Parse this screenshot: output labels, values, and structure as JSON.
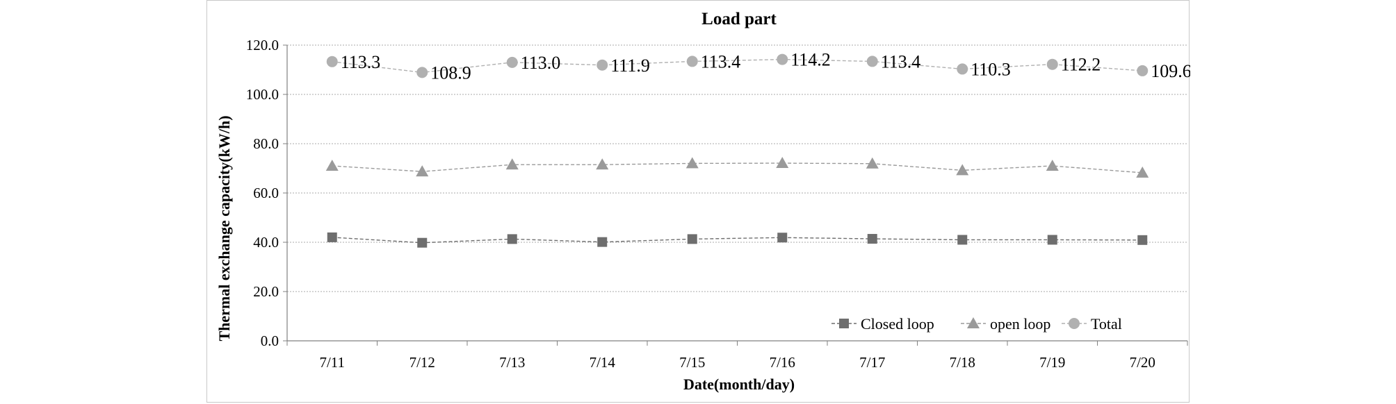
{
  "chart_data": {
    "type": "line",
    "title": "Load part",
    "xlabel": "Date(month/day)",
    "ylabel": "Thermal exchange capacity(kW/h)",
    "categories": [
      "7/11",
      "7/12",
      "7/13",
      "7/14",
      "7/15",
      "7/16",
      "7/17",
      "7/18",
      "7/19",
      "7/20"
    ],
    "ylim": [
      0,
      120
    ],
    "yticks": [
      "0.0",
      "20.0",
      "40.0",
      "60.0",
      "80.0",
      "100.0",
      "120.0"
    ],
    "grid": true,
    "legend_position": "bottom-right",
    "series": [
      {
        "name": "Closed loop",
        "marker": "square",
        "color": "#6e6e6e",
        "values": [
          42.0,
          39.8,
          41.3,
          40.1,
          41.3,
          41.9,
          41.4,
          41.0,
          41.0,
          40.9
        ]
      },
      {
        "name": "open loop",
        "marker": "triangle",
        "color": "#9a9a9a",
        "values": [
          71.0,
          68.7,
          71.5,
          71.5,
          72.0,
          72.1,
          71.9,
          69.2,
          71.0,
          68.2
        ]
      },
      {
        "name": "Total",
        "marker": "circle",
        "color": "#b0b0b0",
        "values": [
          113.3,
          108.9,
          113.0,
          111.9,
          113.4,
          114.2,
          113.4,
          110.3,
          112.2,
          109.6
        ],
        "labels": [
          "113.3",
          "108.9",
          "113.0",
          "111.9",
          "113.4",
          "114.2",
          "113.4",
          "110.3",
          "112.2",
          "109.6"
        ]
      }
    ]
  }
}
